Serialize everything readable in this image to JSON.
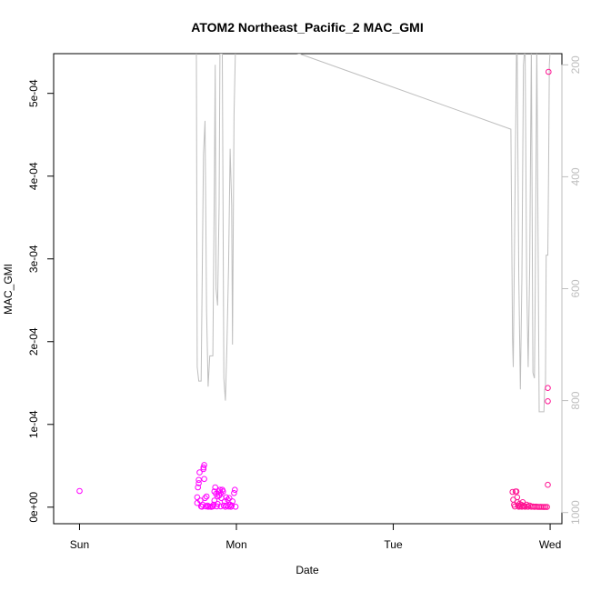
{
  "chart_data": {
    "type": "scatter",
    "title": "ATOM2 Northeast_Pacific_2 MAC_GMI",
    "xlabel": "Date",
    "ylabel": "MAC_GMI",
    "x_ticks": [
      {
        "label": "Sun",
        "day": 0
      },
      {
        "label": "Mon",
        "day": 1
      },
      {
        "label": "Tue",
        "day": 2
      },
      {
        "label": "Wed",
        "day": 3
      }
    ],
    "xlim_days": [
      -0.165,
      3.075
    ],
    "ylim": [
      -2e-05,
      0.000548
    ],
    "y_ticks": [
      {
        "label": "0e+00",
        "value": 0
      },
      {
        "label": "1e-04",
        "value": 0.0001
      },
      {
        "label": "2e-04",
        "value": 0.0002
      },
      {
        "label": "3e-04",
        "value": 0.0003
      },
      {
        "label": "4e-04",
        "value": 0.0004
      },
      {
        "label": "5e-04",
        "value": 0.0005
      }
    ],
    "y2_ticks": [
      {
        "label": "200",
        "value": 200
      },
      {
        "label": "400",
        "value": 400
      },
      {
        "label": "600",
        "value": 600
      },
      {
        "label": "800",
        "value": 800
      },
      {
        "label": "1000",
        "value": 1000
      }
    ],
    "y2lim": [
      1020,
      180
    ],
    "colors": {
      "points": "#ff00ff",
      "points_dense": "#ff1493",
      "pressure_line": "#bebebe",
      "axis": "#000000",
      "axis2": "#bebebe"
    },
    "series": [
      {
        "kind": "points",
        "points": [
          [
            0.0,
            1.95e-05
          ],
          [
            0.75,
            5e-06
          ],
          [
            0.75,
            1.2e-05
          ],
          [
            0.755,
            2.4e-05
          ],
          [
            0.76,
            2.9e-05
          ],
          [
            0.76,
            3.3e-05
          ],
          [
            0.765,
            4.2e-05
          ],
          [
            0.77,
            8e-06
          ],
          [
            0.775,
            1e-06
          ],
          [
            0.78,
            5e-07
          ],
          [
            0.785,
            3e-06
          ],
          [
            0.79,
            4.6e-05
          ],
          [
            0.79,
            4.8e-05
          ],
          [
            0.795,
            5.1e-05
          ],
          [
            0.795,
            3.4e-05
          ],
          [
            0.8,
            1.1e-05
          ],
          [
            0.805,
            1e-06
          ],
          [
            0.81,
            1.3e-05
          ],
          [
            0.815,
            2e-06
          ],
          [
            0.82,
            5e-07
          ],
          [
            0.83,
            8e-07
          ],
          [
            0.84,
            4e-07
          ],
          [
            0.85,
            1e-06
          ],
          [
            0.855,
            3e-06
          ],
          [
            0.86,
            8e-06
          ],
          [
            0.86,
            1.9e-05
          ],
          [
            0.865,
            2.4e-05
          ],
          [
            0.87,
            1.6e-05
          ],
          [
            0.875,
            1e-06
          ],
          [
            0.88,
            1.3e-05
          ],
          [
            0.88,
            4e-06
          ],
          [
            0.885,
            1.9e-05
          ],
          [
            0.89,
            1.4e-05
          ],
          [
            0.895,
            2.1e-05
          ],
          [
            0.9,
            1.7e-05
          ],
          [
            0.9,
            1e-06
          ],
          [
            0.905,
            1.1e-05
          ],
          [
            0.91,
            2.1e-05
          ],
          [
            0.915,
            1.9e-05
          ],
          [
            0.92,
            2e-06
          ],
          [
            0.925,
            7e-06
          ],
          [
            0.93,
            5e-07
          ],
          [
            0.935,
            1.2e-05
          ],
          [
            0.94,
            2e-06
          ],
          [
            0.945,
            9e-06
          ],
          [
            0.95,
            8e-07
          ],
          [
            0.955,
            1.1e-05
          ],
          [
            0.96,
            3e-06
          ],
          [
            0.965,
            5e-07
          ],
          [
            0.97,
            2e-06
          ],
          [
            0.975,
            7e-06
          ],
          [
            0.985,
            1.7e-05
          ],
          [
            0.99,
            2.1e-05
          ],
          [
            0.995,
            5e-07
          ]
        ]
      },
      {
        "kind": "points_dense",
        "points": [
          [
            2.76,
            1.85e-05
          ],
          [
            2.765,
            9e-06
          ],
          [
            2.77,
            3e-06
          ],
          [
            2.775,
            8e-07
          ],
          [
            2.78,
            1.9e-05
          ],
          [
            2.785,
            1.9e-05
          ],
          [
            2.79,
            1.2e-05
          ],
          [
            2.79,
            6e-06
          ],
          [
            2.795,
            2e-06
          ],
          [
            2.8,
            5e-07
          ],
          [
            2.805,
            4e-06
          ],
          [
            2.81,
            1e-06
          ],
          [
            2.815,
            3e-06
          ],
          [
            2.82,
            5e-07
          ],
          [
            2.825,
            6e-06
          ],
          [
            2.83,
            2e-06
          ],
          [
            2.835,
            1e-06
          ],
          [
            2.84,
            5e-07
          ],
          [
            2.85,
            3e-06
          ],
          [
            2.855,
            8e-07
          ],
          [
            2.86,
            5e-07
          ],
          [
            2.87,
            2e-06
          ],
          [
            2.88,
            5e-07
          ],
          [
            2.89,
            8e-07
          ],
          [
            2.9,
            4e-07
          ],
          [
            2.91,
            6e-07
          ],
          [
            2.92,
            4e-07
          ],
          [
            2.93,
            3e-07
          ],
          [
            2.94,
            4e-07
          ],
          [
            2.95,
            3e-07
          ],
          [
            2.96,
            2e-07
          ],
          [
            2.97,
            3e-07
          ],
          [
            2.98,
            2e-07
          ],
          [
            2.985,
            2.7e-05
          ],
          [
            2.985,
            0.000128
          ],
          [
            2.985,
            0.000144
          ],
          [
            2.99,
            0.000526
          ]
        ]
      },
      {
        "kind": "pressure_line",
        "points": [
          [
            0.745,
            180
          ],
          [
            0.75,
            740
          ],
          [
            0.76,
            765
          ],
          [
            0.775,
            765
          ],
          [
            0.79,
            360
          ],
          [
            0.8,
            300
          ],
          [
            0.81,
            640
          ],
          [
            0.82,
            775
          ],
          [
            0.83,
            720
          ],
          [
            0.84,
            720
          ],
          [
            0.85,
            720
          ],
          [
            0.86,
            400
          ],
          [
            0.865,
            200
          ],
          [
            0.87,
            600
          ],
          [
            0.88,
            630
          ],
          [
            0.89,
            450
          ],
          [
            0.895,
            180
          ],
          [
            0.91,
            180
          ],
          [
            0.92,
            760
          ],
          [
            0.93,
            800
          ],
          [
            0.94,
            700
          ],
          [
            0.95,
            560
          ],
          [
            0.96,
            350
          ],
          [
            0.97,
            450
          ],
          [
            0.975,
            700
          ],
          [
            0.985,
            290
          ],
          [
            0.995,
            160
          ],
          [
            1.4,
            180
          ],
          [
            2.75,
            315
          ],
          [
            2.76,
            690
          ],
          [
            2.765,
            740
          ],
          [
            2.775,
            470
          ],
          [
            2.785,
            180
          ],
          [
            2.79,
            180
          ],
          [
            2.8,
            580
          ],
          [
            2.81,
            780
          ],
          [
            2.82,
            580
          ],
          [
            2.83,
            200
          ],
          [
            2.84,
            160
          ],
          [
            2.85,
            580
          ],
          [
            2.86,
            740
          ],
          [
            2.87,
            560
          ],
          [
            2.88,
            160
          ],
          [
            2.89,
            750
          ],
          [
            2.9,
            760
          ],
          [
            2.905,
            600
          ],
          [
            2.915,
            160
          ],
          [
            2.93,
            820
          ],
          [
            2.95,
            820
          ],
          [
            2.96,
            820
          ],
          [
            2.965,
            780
          ],
          [
            2.97,
            780
          ],
          [
            2.975,
            540
          ],
          [
            2.985,
            540
          ],
          [
            2.99,
            400
          ],
          [
            2.995,
            200
          ],
          [
            3.0,
            175
          ]
        ]
      }
    ]
  }
}
